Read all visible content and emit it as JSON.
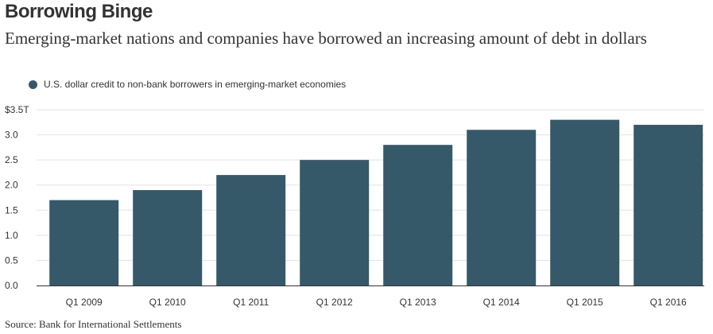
{
  "header": {
    "title": "Borrowing Binge",
    "subtitle": "Emerging-market nations and companies have borrowed an increasing amount of debt in dollars"
  },
  "footer": {
    "source": "Source: Bank for International Settlements"
  },
  "colors": {
    "bar": "#36596a",
    "grid": "#e3e3e3",
    "axis": "#333333",
    "text": "#333333"
  },
  "chart_data": {
    "type": "bar",
    "categories": [
      "Q1 2009",
      "Q1 2010",
      "Q1 2011",
      "Q1 2012",
      "Q1 2013",
      "Q1 2014",
      "Q1 2015",
      "Q1 2016"
    ],
    "series": [
      {
        "name": "U.S. dollar credit to non-bank borrowers in emerging-market economies",
        "values": [
          1.7,
          1.9,
          2.2,
          2.5,
          2.8,
          3.1,
          3.3,
          3.2
        ]
      }
    ],
    "ylim": [
      0,
      3.5
    ],
    "yticks": [
      0,
      0.5,
      1.0,
      1.5,
      2.0,
      2.5,
      3.0,
      3.5
    ],
    "ytick_labels": [
      "0.0",
      "0.5",
      "1.0",
      "1.5",
      "2.0",
      "2.5",
      "3.0",
      "$3.5T"
    ],
    "grid": true,
    "legend": "top-left",
    "xlabel": "",
    "ylabel": ""
  }
}
